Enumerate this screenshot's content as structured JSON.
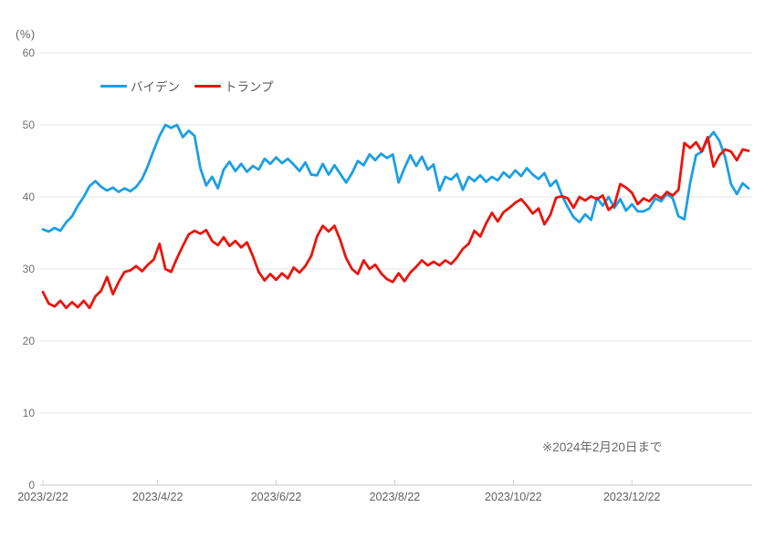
{
  "note": "※2024年2月20日まで",
  "colors": {
    "biden_line": "#1C9FE5",
    "trump_line": "#E9150D",
    "gridline": "#e3e3e3",
    "axis_line": "#c9c9c9",
    "tick_mark": "#cfcfcf",
    "y_label_text": "#6e6e6e",
    "x_label_text": "#5f5f5f",
    "note_text": "#696969",
    "legend_text": "#595959",
    "background": "#ffffff"
  },
  "chart_data": {
    "type": "line",
    "title": "",
    "xlabel": "",
    "ylabel": "(%)",
    "ylim": [
      0,
      60
    ],
    "y_ticks": [
      60,
      50,
      40,
      30,
      20,
      10,
      0
    ],
    "grid": true,
    "legend_position": "top-left-inside",
    "x_tick_labels": [
      "2023/2/22",
      "2023/4/22",
      "2023/6/22",
      "2023/8/22",
      "2023/10/22",
      "2023/12/22"
    ],
    "x_tick_days": [
      0,
      59,
      120,
      181,
      242,
      303
    ],
    "x_range_days": [
      0,
      363
    ],
    "x_end_label": "2024/2/20",
    "sample_interval_days": 3,
    "series": [
      {
        "name": "バイデン",
        "color": "#1C9FE5",
        "values": [
          35.5,
          35.2,
          35.7,
          35.3,
          36.5,
          37.3,
          38.8,
          40.0,
          41.5,
          42.2,
          41.4,
          40.9,
          41.3,
          40.7,
          41.2,
          40.8,
          41.4,
          42.5,
          44.3,
          46.5,
          48.5,
          50.0,
          49.6,
          50.0,
          48.3,
          49.2,
          48.5,
          44.0,
          41.6,
          42.8,
          41.2,
          43.8,
          44.9,
          43.6,
          44.6,
          43.5,
          44.3,
          43.8,
          45.3,
          44.6,
          45.5,
          44.7,
          45.3,
          44.5,
          43.6,
          44.8,
          43.1,
          43.0,
          44.6,
          43.1,
          44.4,
          43.2,
          42.0,
          43.3,
          45.0,
          44.4,
          45.9,
          45.1,
          46.0,
          45.4,
          45.9,
          42.0,
          44.0,
          45.8,
          44.3,
          45.6,
          43.8,
          44.5,
          40.9,
          42.8,
          42.4,
          43.2,
          41.0,
          42.8,
          42.2,
          43.0,
          42.1,
          42.8,
          42.3,
          43.4,
          42.7,
          43.7,
          42.9,
          44.0,
          43.1,
          42.5,
          43.3,
          41.5,
          42.3,
          40.2,
          38.6,
          37.2,
          36.5,
          37.6,
          36.8,
          39.9,
          38.8,
          40.0,
          38.5,
          39.7,
          38.1,
          39.0,
          38.0,
          38.0,
          38.4,
          39.8,
          39.4,
          40.4,
          39.8,
          37.3,
          36.9,
          42.0,
          45.8,
          46.3,
          48.0,
          49.0,
          47.8,
          45.5,
          41.8,
          40.4,
          41.9,
          41.2
        ]
      },
      {
        "name": "トランプ",
        "color": "#E9150D",
        "values": [
          26.8,
          25.2,
          24.8,
          25.6,
          24.6,
          25.4,
          24.7,
          25.6,
          24.6,
          26.2,
          27.0,
          28.9,
          26.5,
          28.2,
          29.6,
          29.8,
          30.4,
          29.7,
          30.6,
          31.3,
          33.5,
          30.0,
          29.6,
          31.5,
          33.2,
          34.8,
          35.3,
          34.9,
          35.4,
          33.9,
          33.3,
          34.4,
          33.2,
          33.9,
          33.0,
          33.7,
          31.8,
          29.6,
          28.4,
          29.3,
          28.5,
          29.4,
          28.7,
          30.2,
          29.5,
          30.4,
          31.8,
          34.5,
          36.0,
          35.2,
          36.0,
          34.0,
          31.5,
          30.0,
          29.3,
          31.2,
          30.0,
          30.6,
          29.4,
          28.6,
          28.2,
          29.4,
          28.3,
          29.5,
          30.3,
          31.2,
          30.5,
          31.0,
          30.5,
          31.2,
          30.7,
          31.6,
          32.8,
          33.5,
          35.3,
          34.5,
          36.3,
          37.8,
          36.6,
          37.9,
          38.5,
          39.2,
          39.7,
          38.8,
          37.7,
          38.4,
          36.2,
          37.5,
          39.9,
          40.1,
          39.8,
          38.5,
          40.0,
          39.5,
          40.1,
          39.7,
          40.2,
          38.2,
          38.9,
          41.8,
          41.3,
          40.6,
          39.0,
          39.8,
          39.4,
          40.3,
          39.8,
          40.7,
          40.2,
          41.0,
          47.5,
          46.8,
          47.6,
          46.3,
          48.3,
          44.2,
          45.8,
          46.6,
          46.3,
          45.1,
          46.6,
          46.4
        ]
      }
    ]
  }
}
